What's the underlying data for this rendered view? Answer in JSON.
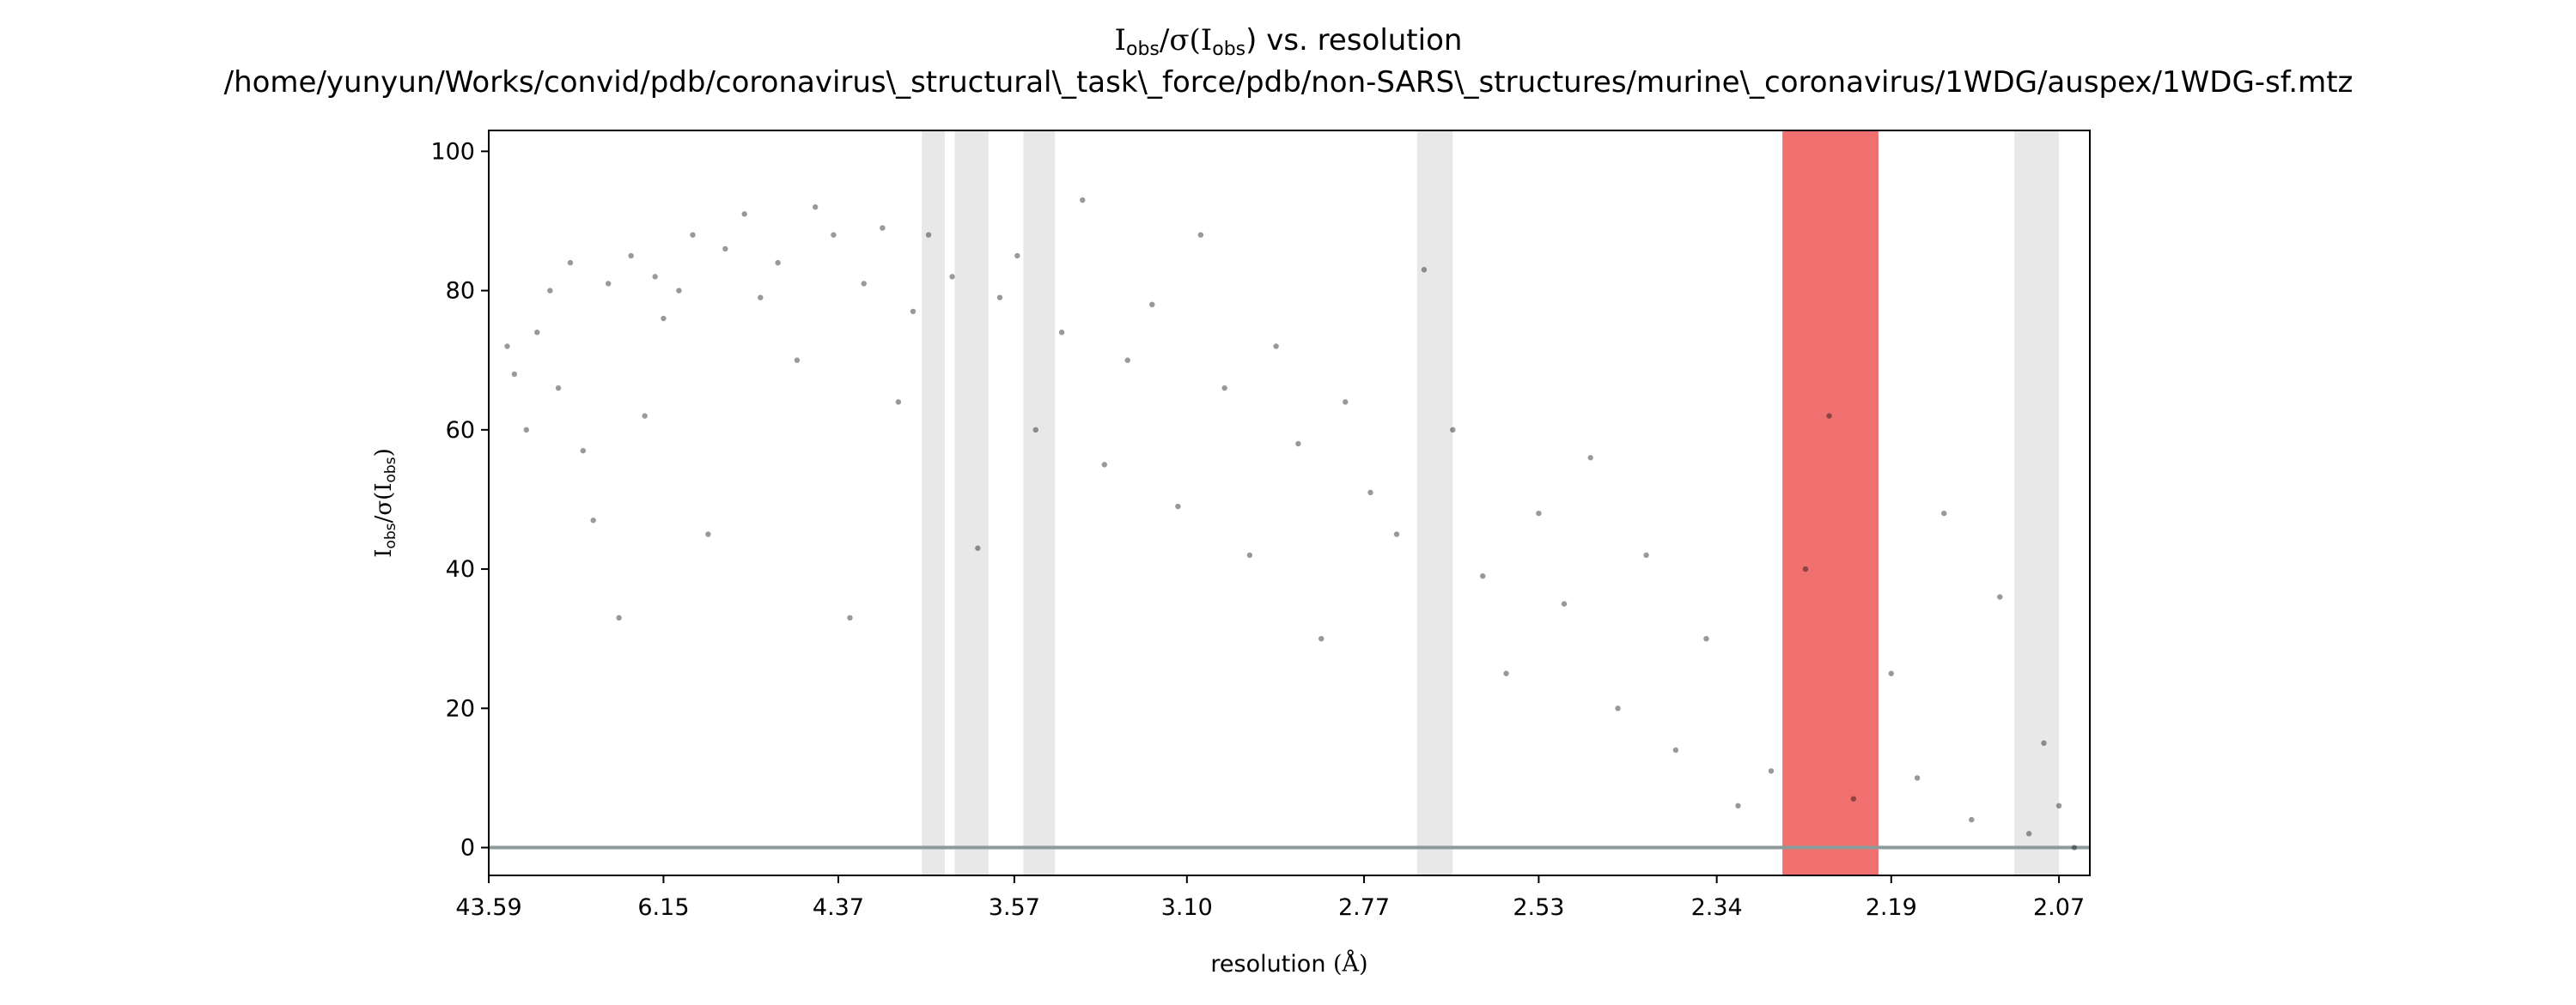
{
  "chart_data": {
    "type": "scatter",
    "title": {
      "line1_prefix": "I",
      "line1_sub1": "obs",
      "line1_mid": "/σ(I",
      "line1_sub2": "obs",
      "line1_suffix": ") vs. resolution",
      "line2": "/home/yunyun/Works/convid/pdb/coronavirus\\_structural\\_task\\_force/pdb/non-SARS\\_structures/murine\\_coronavirus/1WDG/auspex/1WDG-sf.mtz"
    },
    "xlabel": {
      "text": "resolution ",
      "unit": "(Å)"
    },
    "ylabel": {
      "prefix": "I",
      "sub1": "obs",
      "mid": "/σ(I",
      "sub2": "obs",
      "suffix": ")"
    },
    "x_scale": "1/d^2",
    "xlim_resolution": [
      43.59,
      2.05
    ],
    "ylim": [
      -4,
      103
    ],
    "x_ticks": [
      "43.59",
      "6.15",
      "4.37",
      "3.57",
      "3.10",
      "2.77",
      "2.53",
      "2.34",
      "2.19",
      "2.07"
    ],
    "y_ticks": [
      0,
      20,
      40,
      60,
      80,
      100
    ],
    "grid": false,
    "zero_line": {
      "y": 0,
      "color": "#8c9a9a"
    },
    "point_color": "#000000",
    "point_alpha": 0.4,
    "excluded_resolution_bands": {
      "color": "#e8e8e8",
      "ranges_resolution": [
        [
          3.93,
          3.83
        ],
        [
          3.79,
          3.66
        ],
        [
          3.54,
          3.44
        ],
        [
          2.69,
          2.64
        ],
        [
          2.1,
          2.07
        ]
      ]
    },
    "ice_ring_bands": {
      "color": "#f07070",
      "ranges_resolution": [
        [
          2.28,
          2.2
        ]
      ]
    },
    "points_resolution_intensity": [
      [
        17.5,
        72
      ],
      [
        15.2,
        68
      ],
      [
        12.8,
        60
      ],
      [
        11.4,
        74
      ],
      [
        10.2,
        80
      ],
      [
        9.6,
        66
      ],
      [
        8.9,
        84
      ],
      [
        8.3,
        57
      ],
      [
        7.9,
        47
      ],
      [
        7.4,
        81
      ],
      [
        7.1,
        33
      ],
      [
        6.8,
        85
      ],
      [
        6.5,
        62
      ],
      [
        6.3,
        82
      ],
      [
        6.15,
        76
      ],
      [
        5.9,
        80
      ],
      [
        5.7,
        88
      ],
      [
        5.5,
        45
      ],
      [
        5.3,
        86
      ],
      [
        5.1,
        91
      ],
      [
        4.95,
        79
      ],
      [
        4.8,
        84
      ],
      [
        4.65,
        70
      ],
      [
        4.52,
        92
      ],
      [
        4.4,
        88
      ],
      [
        4.3,
        33
      ],
      [
        4.22,
        81
      ],
      [
        4.12,
        89
      ],
      [
        4.04,
        64
      ],
      [
        3.97,
        77
      ],
      [
        3.9,
        88
      ],
      [
        3.8,
        82
      ],
      [
        3.7,
        43
      ],
      [
        3.62,
        79
      ],
      [
        3.56,
        85
      ],
      [
        3.5,
        60
      ],
      [
        3.42,
        74
      ],
      [
        3.36,
        93
      ],
      [
        3.3,
        55
      ],
      [
        3.24,
        70
      ],
      [
        3.18,
        78
      ],
      [
        3.12,
        49
      ],
      [
        3.07,
        88
      ],
      [
        3.02,
        66
      ],
      [
        2.97,
        42
      ],
      [
        2.92,
        72
      ],
      [
        2.88,
        58
      ],
      [
        2.84,
        30
      ],
      [
        2.8,
        64
      ],
      [
        2.76,
        51
      ],
      [
        2.72,
        45
      ],
      [
        2.68,
        83
      ],
      [
        2.64,
        60
      ],
      [
        2.6,
        39
      ],
      [
        2.57,
        25
      ],
      [
        2.53,
        48
      ],
      [
        2.5,
        35
      ],
      [
        2.47,
        56
      ],
      [
        2.44,
        20
      ],
      [
        2.41,
        42
      ],
      [
        2.38,
        14
      ],
      [
        2.35,
        30
      ],
      [
        2.32,
        6
      ],
      [
        2.29,
        11
      ],
      [
        2.26,
        40
      ],
      [
        2.24,
        62
      ],
      [
        2.22,
        7
      ],
      [
        2.19,
        25
      ],
      [
        2.17,
        10
      ],
      [
        2.15,
        48
      ],
      [
        2.13,
        4
      ],
      [
        2.11,
        36
      ],
      [
        2.09,
        2
      ],
      [
        2.08,
        15
      ],
      [
        2.07,
        6
      ],
      [
        2.06,
        0
      ]
    ]
  }
}
